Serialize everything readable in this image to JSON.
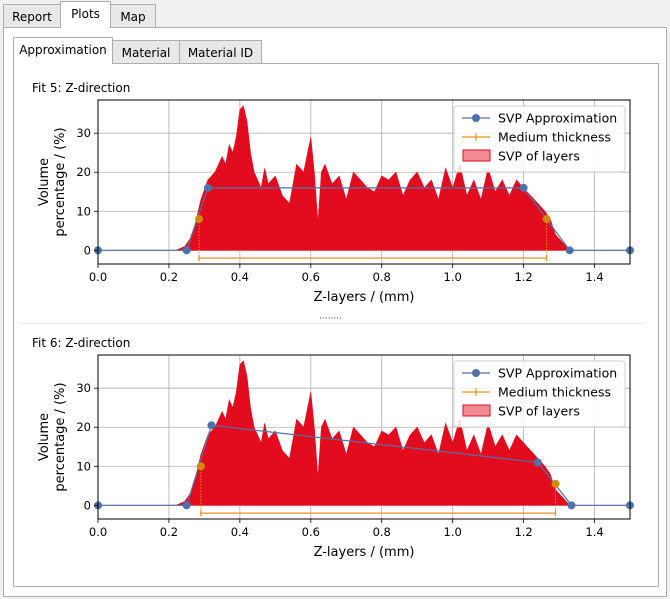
{
  "tabs": [
    "Report",
    "Plots",
    "Map"
  ],
  "active_tab": "Plots",
  "subtabs": [
    "Approximation",
    "Material",
    "Material ID"
  ],
  "active_subtab": "Approximation",
  "colors": {
    "approx": "#4e72a8",
    "medium": "#e8901c",
    "layers": "#e30c1e",
    "marker": "#d4880a"
  },
  "plot1": {
    "label": "Fit 5: Z-direction"
  },
  "plot2": {
    "label": "Fit 6: Z-direction"
  },
  "chart_data": [
    {
      "type": "area",
      "xlabel": "Z-layers / (mm)",
      "ylabel": "Volume percentage / (%)",
      "ylabel_lines": [
        "Volume",
        "percentage / (%)"
      ],
      "xlim": [
        0.0,
        1.5
      ],
      "ylim": [
        -3.5,
        38.5
      ],
      "xticks": [
        "0.0",
        "0.2",
        "0.4",
        "0.6",
        "0.8",
        "1.0",
        "1.2",
        "1.4"
      ],
      "yticks": [
        "0",
        "10",
        "20",
        "30"
      ],
      "grid": true,
      "legend": [
        "SVP Approximation",
        "Medium thickness",
        "SVP of layers"
      ],
      "legend_position": "top-right",
      "series": [
        {
          "name": "SVP Approximation",
          "x": [
            0.0,
            0.25,
            0.31,
            1.2,
            1.33,
            1.5
          ],
          "y": [
            0,
            0,
            16,
            16,
            0,
            0
          ]
        },
        {
          "name": "Medium thickness",
          "x": [
            0.285,
            1.265
          ],
          "y": [
            -2,
            -2
          ]
        },
        {
          "name": "SVP of layers",
          "x": [
            0.0,
            0.22,
            0.245,
            0.26,
            0.275,
            0.29,
            0.31,
            0.33,
            0.35,
            0.36,
            0.37,
            0.38,
            0.39,
            0.4,
            0.41,
            0.42,
            0.43,
            0.44,
            0.45,
            0.46,
            0.47,
            0.48,
            0.5,
            0.52,
            0.54,
            0.56,
            0.58,
            0.6,
            0.61,
            0.62,
            0.63,
            0.64,
            0.66,
            0.68,
            0.7,
            0.72,
            0.74,
            0.76,
            0.78,
            0.8,
            0.82,
            0.84,
            0.86,
            0.88,
            0.9,
            0.92,
            0.94,
            0.96,
            0.98,
            1.0,
            1.02,
            1.04,
            1.06,
            1.08,
            1.1,
            1.12,
            1.14,
            1.16,
            1.18,
            1.2,
            1.22,
            1.24,
            1.26,
            1.275,
            1.29,
            1.31,
            1.33,
            1.5
          ],
          "y": [
            0,
            0,
            1,
            3,
            7,
            13,
            18,
            20,
            24,
            22,
            27,
            25,
            29,
            36,
            37,
            33,
            25,
            20,
            18,
            16,
            21,
            17,
            19,
            14,
            12,
            22,
            20,
            29,
            20,
            7,
            20,
            22,
            17,
            19,
            13,
            20,
            18,
            16,
            15,
            19,
            18,
            20,
            14,
            18,
            20,
            16,
            18,
            13,
            21,
            16,
            22,
            14,
            18,
            13,
            21,
            15,
            18,
            14,
            18,
            16,
            14,
            12,
            10,
            8,
            4,
            2,
            0,
            0
          ]
        }
      ],
      "markers": [
        {
          "x": 0.285,
          "y": 8
        },
        {
          "x": 1.265,
          "y": 8
        }
      ]
    },
    {
      "type": "area",
      "xlabel": "Z-layers / (mm)",
      "ylabel": "Volume percentage / (%)",
      "ylabel_lines": [
        "Volume",
        "percentage / (%)"
      ],
      "xlim": [
        0.0,
        1.5
      ],
      "ylim": [
        -3.5,
        38.5
      ],
      "xticks": [
        "0.0",
        "0.2",
        "0.4",
        "0.6",
        "0.8",
        "1.0",
        "1.2",
        "1.4"
      ],
      "yticks": [
        "0",
        "10",
        "20",
        "30"
      ],
      "grid": true,
      "legend": [
        "SVP Approximation",
        "Medium thickness",
        "SVP of layers"
      ],
      "legend_position": "top-right",
      "series": [
        {
          "name": "SVP Approximation",
          "x": [
            0.0,
            0.25,
            0.32,
            1.24,
            1.335,
            1.5
          ],
          "y": [
            0,
            0,
            20.5,
            11,
            0,
            0
          ]
        },
        {
          "name": "Medium thickness",
          "x": [
            0.29,
            1.29
          ],
          "y": [
            -2,
            -2
          ]
        },
        {
          "name": "SVP of layers",
          "x": [
            0.0,
            0.22,
            0.245,
            0.26,
            0.275,
            0.29,
            0.31,
            0.33,
            0.35,
            0.36,
            0.37,
            0.38,
            0.39,
            0.4,
            0.41,
            0.42,
            0.43,
            0.44,
            0.45,
            0.46,
            0.47,
            0.48,
            0.5,
            0.52,
            0.54,
            0.56,
            0.58,
            0.6,
            0.61,
            0.62,
            0.63,
            0.64,
            0.66,
            0.68,
            0.7,
            0.72,
            0.74,
            0.76,
            0.78,
            0.8,
            0.82,
            0.84,
            0.86,
            0.88,
            0.9,
            0.92,
            0.94,
            0.96,
            0.98,
            1.0,
            1.02,
            1.04,
            1.06,
            1.08,
            1.1,
            1.12,
            1.14,
            1.16,
            1.18,
            1.2,
            1.22,
            1.24,
            1.26,
            1.275,
            1.29,
            1.31,
            1.33,
            1.5
          ],
          "y": [
            0,
            0,
            1,
            3,
            7,
            13,
            18,
            20,
            24,
            22,
            27,
            25,
            29,
            36,
            37,
            33,
            25,
            20,
            18,
            16,
            21,
            17,
            19,
            14,
            12,
            22,
            20,
            29,
            20,
            7,
            20,
            22,
            17,
            19,
            13,
            20,
            18,
            16,
            15,
            19,
            18,
            20,
            14,
            18,
            20,
            16,
            18,
            13,
            21,
            16,
            22,
            14,
            18,
            13,
            21,
            15,
            18,
            14,
            18,
            16,
            14,
            12,
            10,
            8,
            4,
            2,
            0,
            0
          ]
        }
      ],
      "markers": [
        {
          "x": 0.29,
          "y": 10
        },
        {
          "x": 1.29,
          "y": 5.5
        }
      ]
    }
  ]
}
